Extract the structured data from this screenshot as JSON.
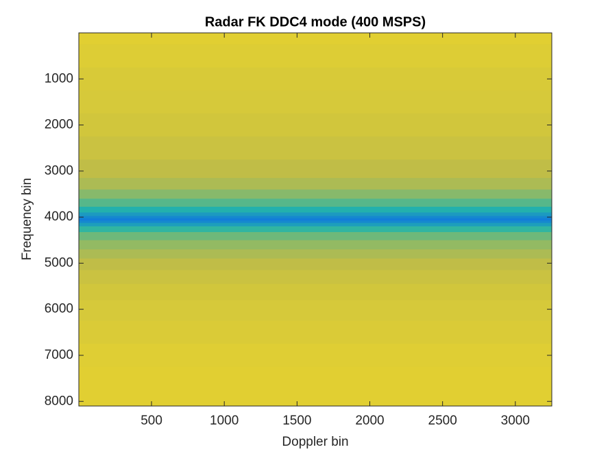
{
  "chart_data": {
    "type": "heatmap",
    "title": "Radar FK DDC4 mode (400 MSPS)",
    "x_label": "Doppler bin",
    "y_label": "Frequency bin",
    "xlim": [
      0.5,
      3250.5
    ],
    "ylim": [
      0.5,
      8100.5
    ],
    "y_reversed": true,
    "xticks": [
      500,
      1000,
      1500,
      2000,
      2500,
      3000
    ],
    "yticks": [
      1000,
      2000,
      3000,
      4000,
      5000,
      6000,
      7000,
      8000
    ],
    "colormap": "parula",
    "rows": {
      "y": [
        0.5,
        500,
        1000,
        1500,
        2000,
        2500,
        3000,
        3300,
        3500,
        3700,
        3850,
        3950,
        4000,
        4050,
        4100,
        4150,
        4250,
        4400,
        4600,
        4800,
        5000,
        5300,
        5600,
        6000,
        6500,
        7000,
        7500,
        8100.5
      ],
      "values": [
        0.9,
        0.88,
        0.86,
        0.85,
        0.83,
        0.8,
        0.76,
        0.72,
        0.66,
        0.58,
        0.48,
        0.38,
        0.3,
        0.25,
        0.3,
        0.4,
        0.52,
        0.62,
        0.68,
        0.72,
        0.76,
        0.8,
        0.83,
        0.85,
        0.87,
        0.89,
        0.9,
        0.9
      ]
    }
  }
}
